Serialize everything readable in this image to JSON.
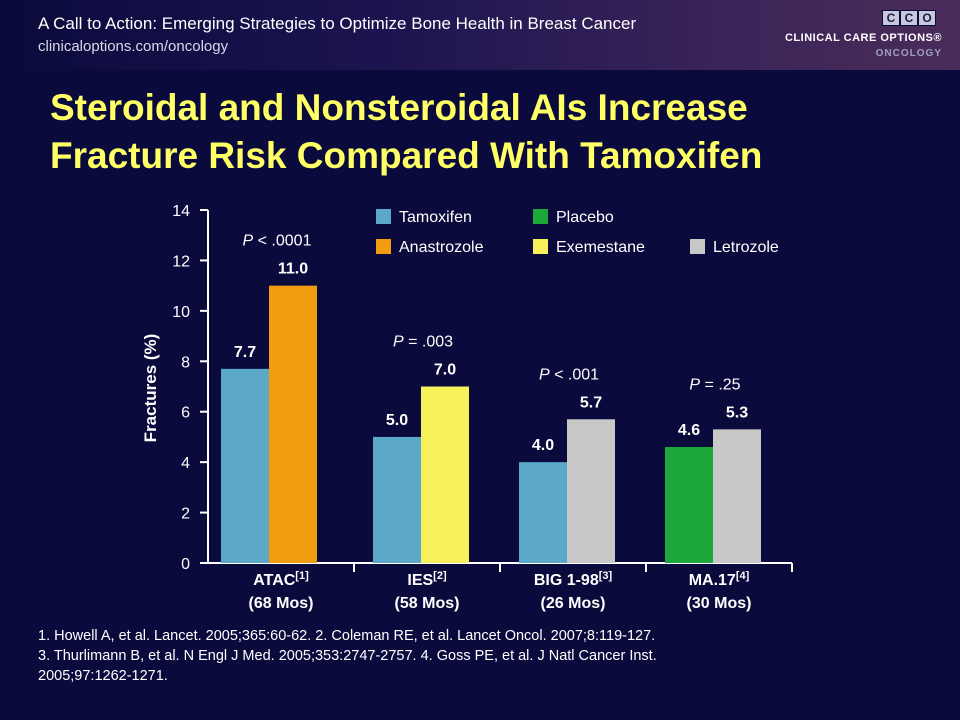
{
  "header": {
    "title": "A Call to Action: Emerging Strategies to Optimize Bone Health in Breast Cancer",
    "url": "clinicaloptions.com/oncology"
  },
  "logo": {
    "letters": [
      "C",
      "C",
      "O"
    ],
    "line1": "CLINICAL CARE OPTIONS®",
    "line2": "ONCOLOGY"
  },
  "slide_title": {
    "line1": "Steroidal and Nonsteroidal AIs Increase",
    "line2": "Fracture Risk Compared With Tamoxifen"
  },
  "colors": {
    "tamoxifen": "#5ba8c9",
    "anastrozole": "#f29c0f",
    "placebo": "#1fa83a",
    "exemestane": "#f8f15c",
    "letrozole": "#c8c8c8",
    "axis": "#ffffff",
    "background": "#0a0a3c",
    "title": "#ffff66"
  },
  "chart_data": {
    "type": "bar",
    "ylabel": "Fractures (%)",
    "ylim": [
      0,
      14
    ],
    "yticks": [
      0,
      2,
      4,
      6,
      8,
      10,
      12,
      14
    ],
    "legend": [
      {
        "name": "Tamoxifen",
        "color": "#5ba8c9"
      },
      {
        "name": "Placebo",
        "color": "#1fa83a"
      },
      {
        "name": "Anastrozole",
        "color": "#f29c0f"
      },
      {
        "name": "Exemestane",
        "color": "#f8f15c"
      },
      {
        "name": "Letrozole",
        "color": "#c8c8c8"
      }
    ],
    "groups": [
      {
        "label": "ATAC",
        "ref": "[1]",
        "duration": "(68 Mos)",
        "pvalue": {
          "prefix": "P",
          "text": " < .0001"
        },
        "bars": [
          {
            "series": "Tamoxifen",
            "value": 7.7,
            "label": "7.7"
          },
          {
            "series": "Anastrozole",
            "value": 11.0,
            "label": "11.0"
          }
        ]
      },
      {
        "label": "IES",
        "ref": "[2]",
        "duration": "(58 Mos)",
        "pvalue": {
          "prefix": "P",
          "text": " = .003"
        },
        "bars": [
          {
            "series": "Tamoxifen",
            "value": 5.0,
            "label": "5.0"
          },
          {
            "series": "Exemestane",
            "value": 7.0,
            "label": "7.0"
          }
        ]
      },
      {
        "label": "BIG 1-98",
        "ref": "[3]",
        "duration": "(26 Mos)",
        "pvalue": {
          "prefix": "P",
          "text": " < .001"
        },
        "bars": [
          {
            "series": "Tamoxifen",
            "value": 4.0,
            "label": "4.0"
          },
          {
            "series": "Letrozole",
            "value": 5.7,
            "label": "5.7"
          }
        ]
      },
      {
        "label": "MA.17",
        "ref": "[4]",
        "duration": "(30 Mos)",
        "pvalue": {
          "prefix": "P",
          "text": " = .25"
        },
        "bars": [
          {
            "series": "Placebo",
            "value": 4.6,
            "label": "4.6"
          },
          {
            "series": "Letrozole",
            "value": 5.3,
            "label": "5.3"
          }
        ]
      }
    ]
  },
  "references": {
    "line1": "1. Howell A, et al. Lancet. 2005;365:60-62. 2. Coleman RE, et al. Lancet Oncol. 2007;8:119-127.",
    "line2": "3. Thurlimann B, et al. N Engl J Med. 2005;353:2747-2757. 4. Goss PE, et al. J Natl Cancer Inst.",
    "line3": "2005;97:1262-1271."
  }
}
